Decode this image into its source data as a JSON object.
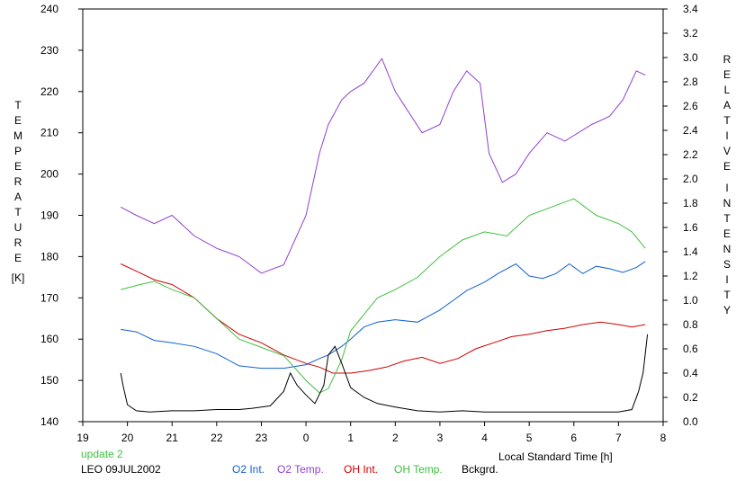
{
  "chart_data": {
    "type": "line",
    "xlabel": "Local Standard Time [h]",
    "ylabel_left": "TEMPERATURE [K]",
    "ylabel_right": "RELATIVE INTENSITY",
    "ylabel_left_letters": [
      "T",
      "E",
      "M",
      "P",
      "E",
      "R",
      "A",
      "T",
      "U",
      "R",
      "E"
    ],
    "ylabel_left_unit": "[K]",
    "ylabel_right_word1": [
      "R",
      "E",
      "L",
      "A",
      "T",
      "I",
      "V",
      "E"
    ],
    "ylabel_right_word2": [
      "I",
      "N",
      "T",
      "E",
      "N",
      "S",
      "I",
      "T",
      "Y"
    ],
    "xlim": [
      19,
      32
    ],
    "x_ticks": [
      19,
      20,
      21,
      22,
      23,
      24,
      25,
      26,
      27,
      28,
      29,
      30,
      31,
      32
    ],
    "x_tick_labels": [
      "19",
      "20",
      "21",
      "22",
      "23",
      "0",
      "1",
      "2",
      "3",
      "4",
      "5",
      "6",
      "7",
      "8"
    ],
    "ylim_left": [
      140,
      240
    ],
    "y_left_ticks": [
      140,
      150,
      160,
      170,
      180,
      190,
      200,
      210,
      220,
      230,
      240
    ],
    "ylim_right": [
      0.0,
      3.4
    ],
    "y_right_ticks": [
      0.0,
      0.2,
      0.4,
      0.6,
      0.8,
      1.0,
      1.2,
      1.4,
      1.6,
      1.8,
      2.0,
      2.2,
      2.4,
      2.6,
      2.8,
      3.0,
      3.2,
      3.4
    ],
    "y_right_tick_labels": [
      "0.0",
      "0.2",
      "0.4",
      "0.6",
      "0.8",
      "1.0",
      "1.2",
      "1.4",
      "1.6",
      "1.8",
      "2.0",
      "2.2",
      "2.4",
      "2.6",
      "2.8",
      "3.0",
      "3.2",
      "3.4"
    ],
    "grid": false,
    "annotation_update": "update 2",
    "annotation_station": "LEO 09JUL2002",
    "series": [
      {
        "name": "O2 Int.",
        "axis": "right",
        "color": "#1060d0",
        "x": [
          19.85,
          20.2,
          20.6,
          21.0,
          21.5,
          22.0,
          22.5,
          23.0,
          23.5,
          24.0,
          24.3,
          24.5,
          24.8,
          25.0,
          25.3,
          25.6,
          26.0,
          26.5,
          27.0,
          27.3,
          27.6,
          28.0,
          28.3,
          28.7,
          29.0,
          29.3,
          29.6,
          29.9,
          30.2,
          30.5,
          30.8,
          31.1,
          31.4,
          31.6
        ],
        "y": [
          0.76,
          0.74,
          0.67,
          0.65,
          0.62,
          0.56,
          0.46,
          0.44,
          0.44,
          0.47,
          0.52,
          0.55,
          0.62,
          0.68,
          0.78,
          0.82,
          0.84,
          0.82,
          0.92,
          1.0,
          1.08,
          1.15,
          1.22,
          1.3,
          1.2,
          1.18,
          1.22,
          1.3,
          1.22,
          1.28,
          1.26,
          1.23,
          1.27,
          1.32
        ]
      },
      {
        "name": "O2 Temp.",
        "axis": "left",
        "color": "#9040d0",
        "x": [
          19.85,
          20.2,
          20.6,
          21.0,
          21.5,
          22.0,
          22.5,
          23.0,
          23.5,
          24.0,
          24.3,
          24.5,
          24.8,
          25.0,
          25.3,
          25.5,
          25.7,
          26.0,
          26.3,
          26.6,
          27.0,
          27.3,
          27.6,
          27.9,
          28.1,
          28.4,
          28.7,
          29.0,
          29.4,
          29.8,
          30.1,
          30.4,
          30.8,
          31.1,
          31.4,
          31.6
        ],
        "y": [
          192,
          190,
          188,
          190,
          185,
          182,
          180,
          176,
          178,
          190,
          205,
          212,
          218,
          220,
          222,
          225,
          228,
          220,
          215,
          210,
          212,
          220,
          225,
          222,
          205,
          198,
          200,
          205,
          210,
          208,
          210,
          212,
          214,
          218,
          225,
          224
        ]
      },
      {
        "name": "OH Int.",
        "axis": "right",
        "color": "#d00000",
        "x": [
          19.85,
          20.2,
          20.6,
          21.0,
          21.5,
          22.0,
          22.5,
          23.0,
          23.5,
          24.0,
          24.3,
          24.6,
          25.0,
          25.4,
          25.8,
          26.2,
          26.6,
          27.0,
          27.4,
          27.8,
          28.2,
          28.6,
          29.0,
          29.4,
          29.8,
          30.2,
          30.6,
          31.0,
          31.3,
          31.6
        ],
        "y": [
          1.3,
          1.24,
          1.17,
          1.13,
          1.02,
          0.85,
          0.72,
          0.65,
          0.55,
          0.48,
          0.45,
          0.4,
          0.4,
          0.42,
          0.45,
          0.5,
          0.53,
          0.48,
          0.52,
          0.6,
          0.65,
          0.7,
          0.72,
          0.75,
          0.77,
          0.8,
          0.82,
          0.8,
          0.78,
          0.8
        ]
      },
      {
        "name": "OH Temp.",
        "axis": "left",
        "color": "#40c040",
        "x": [
          19.85,
          20.2,
          20.6,
          21.0,
          21.5,
          22.0,
          22.5,
          23.0,
          23.5,
          24.0,
          24.3,
          24.5,
          24.8,
          25.0,
          25.3,
          25.6,
          26.0,
          26.5,
          27.0,
          27.5,
          28.0,
          28.5,
          29.0,
          29.5,
          30.0,
          30.5,
          31.0,
          31.3,
          31.6
        ],
        "y": [
          172,
          173,
          174,
          172,
          170,
          165,
          160,
          158,
          156,
          150,
          147,
          148,
          155,
          162,
          166,
          170,
          172,
          175,
          180,
          184,
          186,
          185,
          190,
          192,
          194,
          190,
          188,
          186,
          182
        ]
      },
      {
        "name": "Bckgrd.",
        "axis": "right",
        "color": "#000000",
        "x": [
          19.85,
          19.9,
          20.0,
          20.2,
          20.5,
          21.0,
          21.5,
          22.0,
          22.5,
          22.8,
          23.0,
          23.2,
          23.5,
          23.65,
          23.8,
          24.0,
          24.2,
          24.4,
          24.5,
          24.65,
          24.8,
          25.0,
          25.3,
          25.6,
          26.0,
          26.5,
          27.0,
          27.5,
          28.0,
          28.5,
          29.0,
          29.5,
          30.0,
          30.5,
          31.0,
          31.3,
          31.45,
          31.55,
          31.65
        ],
        "y": [
          0.4,
          0.3,
          0.14,
          0.09,
          0.08,
          0.09,
          0.09,
          0.1,
          0.1,
          0.11,
          0.12,
          0.13,
          0.25,
          0.4,
          0.3,
          0.22,
          0.15,
          0.3,
          0.55,
          0.62,
          0.48,
          0.28,
          0.2,
          0.15,
          0.12,
          0.09,
          0.08,
          0.09,
          0.08,
          0.08,
          0.08,
          0.08,
          0.08,
          0.08,
          0.08,
          0.1,
          0.25,
          0.4,
          0.72
        ]
      }
    ]
  }
}
